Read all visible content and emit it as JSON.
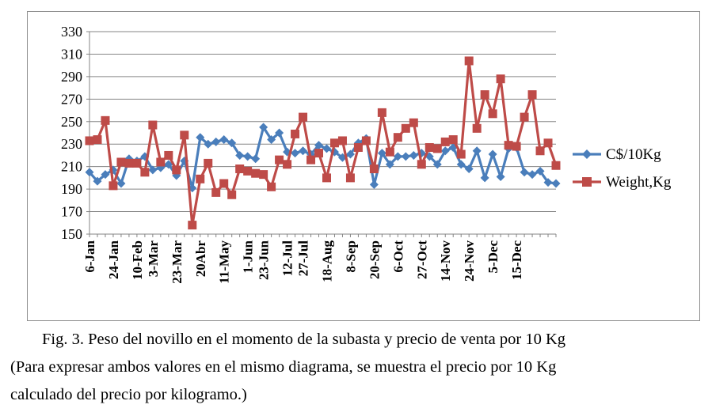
{
  "chart_data": {
    "type": "line",
    "ylim": [
      150,
      330
    ],
    "yticks": [
      150,
      170,
      190,
      210,
      230,
      250,
      270,
      290,
      310,
      330
    ],
    "grid": "horizontal",
    "legend_position": "right",
    "x_tick_labels": [
      "6-Jan",
      "24-Jan",
      "10-Feb",
      "3-Mar",
      "23-Mar",
      "20Abr",
      "11-May",
      "1-Jun",
      "23-Jun",
      "12-Jul",
      "27-Jul",
      "18-Aug",
      "8-Sep",
      "20-Sep",
      "6-Oct",
      "27-Oct",
      "14-Nov",
      "24-Nov",
      "5-Dec",
      "15-Dec"
    ],
    "x_tick_positions": [
      0,
      3,
      6,
      8,
      11,
      14,
      17,
      20,
      22,
      25,
      27,
      30,
      33,
      36,
      39,
      42,
      45,
      48,
      51,
      54
    ],
    "series": [
      {
        "name": "C$/10Kg",
        "color": "#4a7ebb",
        "marker": "diamond",
        "values": [
          205,
          197,
          203,
          207,
          195,
          217,
          215,
          219,
          207,
          209,
          212,
          202,
          215,
          191,
          236,
          230,
          232,
          234,
          231,
          220,
          219,
          217,
          245,
          234,
          240,
          223,
          222,
          224,
          221,
          229,
          226,
          223,
          218,
          221,
          231,
          235,
          194,
          222,
          212,
          219,
          219,
          220,
          222,
          219,
          212,
          224,
          227,
          212,
          208,
          224,
          200,
          221,
          201,
          226,
          227,
          205,
          203,
          206,
          196,
          195
        ]
      },
      {
        "name": "Weight,Kg",
        "color": "#be4b48",
        "marker": "square",
        "values": [
          233,
          234,
          251,
          193,
          214,
          213,
          213,
          205,
          247,
          214,
          220,
          207,
          238,
          158,
          199,
          213,
          187,
          195,
          185,
          208,
          206,
          204,
          203,
          192,
          216,
          212,
          239,
          254,
          216,
          222,
          200,
          231,
          233,
          200,
          227,
          233,
          208,
          258,
          223,
          236,
          244,
          249,
          212,
          227,
          226,
          232,
          234,
          221,
          304,
          244,
          274,
          257,
          288,
          229,
          228,
          254,
          274,
          224,
          231,
          211
        ]
      }
    ]
  },
  "caption": {
    "line1": "Fig. 3. Peso del novillo en el momento de la subasta y precio de venta por 10 Kg",
    "line2": "(Para expresar ambos valores en el mismo diagrama, se muestra el precio por 10 Kg",
    "line3": "calculado del precio por kilogramo.)"
  }
}
